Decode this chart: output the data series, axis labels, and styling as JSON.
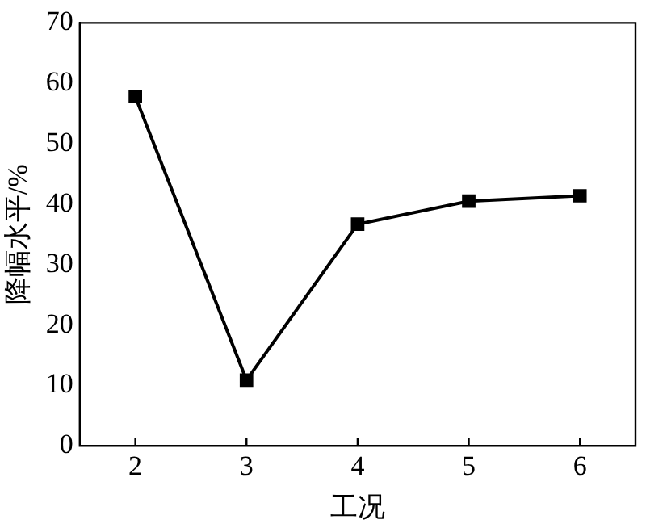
{
  "chart_data": {
    "type": "line",
    "xlabel": "工况",
    "ylabel": "降幅水平/%",
    "x": [
      2,
      3,
      4,
      5,
      6
    ],
    "series": [
      {
        "color": "#000000",
        "values": [
          57.8,
          10.9,
          36.7,
          40.5,
          41.4
        ]
      }
    ],
    "xlim": [
      1.5,
      6.5
    ],
    "xticks": [
      2,
      3,
      4,
      5,
      6
    ],
    "ylim": [
      0,
      70
    ],
    "yticks": [
      0,
      10,
      20,
      30,
      40,
      50,
      60,
      70
    ],
    "grid": false,
    "legend": false,
    "marker": "square",
    "line_style": "solid"
  }
}
